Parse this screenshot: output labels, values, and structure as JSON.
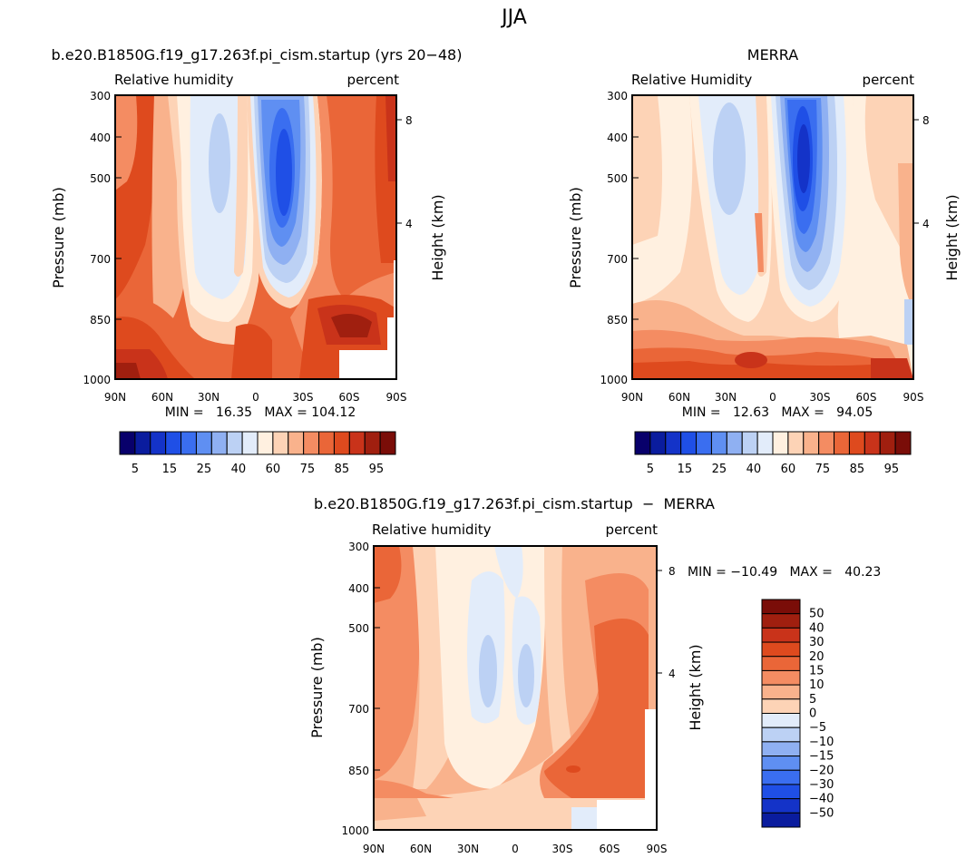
{
  "page": {
    "title": "JJA"
  },
  "panels": [
    {
      "id": "model",
      "title": "b.e20.B1850G.f19_g17.263f.pi_cism.startup (yrs 20−48)",
      "left_label": "Relative  humidity",
      "right_label": "percent",
      "stats": "MIN =   16.35   MAX = 104.12"
    },
    {
      "id": "merra",
      "title": "MERRA",
      "left_label": "Relative  Humidity",
      "right_label": "percent",
      "stats": "MIN =   12.63   MAX =   94.05"
    },
    {
      "id": "diff",
      "title": "b.e20.B1850G.f19_g17.263f.pi_cism.startup  −  MERRA",
      "left_label": "Relative  humidity",
      "right_label": "percent",
      "stats": "MIN = −10.49   MAX =   40.23"
    }
  ],
  "axes": {
    "ylabel": "Pressure  (mb)",
    "y2label": "Height  (km)",
    "yticks": [
      "300",
      "400",
      "500",
      "700",
      "850",
      "1000"
    ],
    "y2ticks": [
      "8",
      "4"
    ],
    "xticks": [
      "90N",
      "60N",
      "30N",
      "0",
      "30S",
      "60S",
      "90S"
    ]
  },
  "colorbar_levels": [
    "5",
    "15",
    "25",
    "40",
    "60",
    "75",
    "85",
    "95"
  ],
  "diff_colorbar_levels": [
    "50",
    "40",
    "30",
    "20",
    "15",
    "10",
    "5",
    "0",
    "−5",
    "−10",
    "−15",
    "−20",
    "−30",
    "−40",
    "−50"
  ],
  "palette": [
    "#08006b",
    "#0a1c9e",
    "#1433c8",
    "#1f4fe6",
    "#3a6ef0",
    "#5f8ff2",
    "#8fb0f2",
    "#bcd1f4",
    "#e2ecfa",
    "#fff0e0",
    "#fdd3b6",
    "#f9b28c",
    "#f48c62",
    "#ea6638",
    "#de4a1e",
    "#c9331a",
    "#a01f0f",
    "#7a0d08"
  ],
  "chart_data": [
    {
      "type": "heatmap",
      "title": "b.e20.B1850G.f19_g17.263f.pi_cism.startup (yrs 20−48)",
      "subtitle": "Relative  humidity",
      "units": "percent",
      "xlabel": "",
      "ylabel": "Pressure  (mb)",
      "y2label": "Height  (km)",
      "x_ticks": [
        "90N",
        "60N",
        "30N",
        "0",
        "30S",
        "60S",
        "90S"
      ],
      "y_ticks": [
        300,
        400,
        500,
        700,
        850,
        1000
      ],
      "y2_ticks": [
        8,
        4
      ],
      "log_pressure_axis": true,
      "contour_levels": [
        5,
        10,
        15,
        20,
        25,
        30,
        40,
        50,
        60,
        70,
        75,
        80,
        85,
        90,
        95,
        100
      ],
      "min": 16.35,
      "max": 104.12
    },
    {
      "type": "heatmap",
      "title": "MERRA",
      "subtitle": "Relative  Humidity",
      "units": "percent",
      "xlabel": "",
      "ylabel": "Pressure  (mb)",
      "y2label": "Height  (km)",
      "x_ticks": [
        "90N",
        "60N",
        "30N",
        "0",
        "30S",
        "60S",
        "90S"
      ],
      "y_ticks": [
        300,
        400,
        500,
        700,
        850,
        1000
      ],
      "y2_ticks": [
        8,
        4
      ],
      "log_pressure_axis": true,
      "contour_levels": [
        5,
        10,
        15,
        20,
        25,
        30,
        40,
        50,
        60,
        70,
        75,
        80,
        85,
        90,
        95,
        100
      ],
      "min": 12.63,
      "max": 94.05
    },
    {
      "type": "heatmap",
      "title": "b.e20.B1850G.f19_g17.263f.pi_cism.startup  −  MERRA",
      "subtitle": "Relative  humidity",
      "units": "percent",
      "xlabel": "",
      "ylabel": "Pressure  (mb)",
      "y2label": "Height  (km)",
      "x_ticks": [
        "90N",
        "60N",
        "30N",
        "0",
        "30S",
        "60S",
        "90S"
      ],
      "y_ticks": [
        300,
        400,
        500,
        700,
        850,
        1000
      ],
      "y2_ticks": [
        8,
        4
      ],
      "log_pressure_axis": true,
      "contour_levels": [
        -50,
        -40,
        -30,
        -20,
        -15,
        -10,
        -5,
        0,
        5,
        10,
        15,
        20,
        30,
        40,
        50
      ],
      "min": -10.49,
      "max": 40.23
    }
  ]
}
